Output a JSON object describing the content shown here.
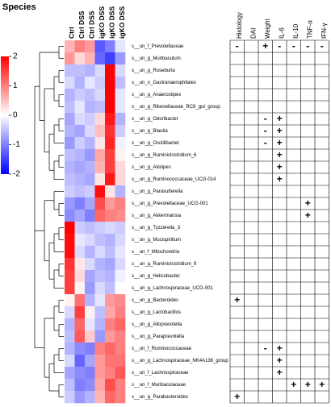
{
  "chart_data": {
    "type": "heatmap",
    "title": "Species",
    "columns": [
      "Ctrl",
      "Ctrl DSS",
      "Ctrl DSS",
      "igKO DSS",
      "igKO DSS",
      "igKO DSS"
    ],
    "rows": [
      "s__un_f_Prevotellaceae",
      "s__un_g_Muribaculum",
      "s__un_g_Roseburia",
      "s__un_o_Gastranaerophilales",
      "s__un_g_Anaerostipes",
      "s__un_g_Rikenellaceae_RC9_gut_group",
      "s__un_g_Odoribacter",
      "s__un_g_Blautia",
      "s__un_g_Oscillibacter",
      "s__un_g_Ruminiclostridium_6",
      "s__un_g_Alistipes",
      "s__un_g_Ruminococcaceae_UCG-014",
      "s__un_g_Parasutterella",
      "s__un_g_Prevotellaceae_UCG-001",
      "s__un_g_Akkermansia",
      "s__un_g_Tyzzerella_3",
      "s__un_g_Mucispirillum",
      "s__un_f_Mitochondria",
      "s__un_g_Ruminiclostridium_9",
      "s__un_g_Helicobacter",
      "s__un_g_Lachnospiraceae_UCG-001",
      "s__un_g_Bacteroides",
      "s__un_g_Lactobacillus",
      "s__un_g_Alloprevotella",
      "s__un_g_Paraprevotella",
      "s__un_f_Ruminococcaceae",
      "s__un_g_Lachnospiraceae_NK4A136_group",
      "s__un_f_Lachnospiraceae",
      "s__un_f_Muribaculaceae",
      "s__un_g_Parabacteroides"
    ],
    "values": [
      [
        0.6,
        1.0,
        0.8,
        -1.3,
        -1.0,
        -0.2
      ],
      [
        0.8,
        0.3,
        0.6,
        -1.2,
        -1.5,
        -0.8
      ],
      [
        -0.5,
        -0.5,
        -0.6,
        -0.3,
        2.0,
        -0.3
      ],
      [
        -0.3,
        -0.6,
        -0.2,
        -0.4,
        2.0,
        -0.5
      ],
      [
        -0.6,
        -0.4,
        -0.5,
        -0.3,
        2.0,
        -0.2
      ],
      [
        -0.5,
        -0.2,
        -0.6,
        -0.5,
        2.0,
        -0.2
      ],
      [
        -0.7,
        -0.3,
        -0.4,
        0.3,
        1.8,
        -0.6
      ],
      [
        -0.6,
        -0.7,
        -0.3,
        0.5,
        1.6,
        -0.4
      ],
      [
        -0.8,
        -0.4,
        -0.6,
        0.2,
        1.7,
        -0.1
      ],
      [
        -0.5,
        -0.6,
        -0.8,
        0.7,
        1.5,
        0.1
      ],
      [
        -0.6,
        -0.7,
        -0.6,
        0.6,
        1.5,
        0.3
      ],
      [
        -0.5,
        -0.6,
        -0.7,
        0.2,
        1.8,
        0.3
      ],
      [
        -0.4,
        -0.5,
        -0.4,
        1.9,
        0.2,
        -0.6
      ],
      [
        -0.8,
        -1.0,
        -0.7,
        1.4,
        0.8,
        1.0
      ],
      [
        -0.9,
        -0.7,
        -1.0,
        1.2,
        1.0,
        0.9
      ],
      [
        2.0,
        -0.4,
        -0.5,
        -0.4,
        -0.3,
        -0.4
      ],
      [
        1.9,
        -0.2,
        -0.3,
        -0.5,
        -0.6,
        -0.3
      ],
      [
        1.9,
        -0.3,
        -0.6,
        -0.3,
        -0.5,
        -0.2
      ],
      [
        1.6,
        0.2,
        -0.3,
        -0.6,
        -0.7,
        -0.3
      ],
      [
        1.5,
        0.3,
        -0.7,
        -0.5,
        -0.6,
        -0.1
      ],
      [
        1.5,
        0.1,
        -0.8,
        -0.3,
        -0.5,
        0.0
      ],
      [
        0.1,
        1.1,
        -0.6,
        -0.2,
        0.8,
        0.9
      ],
      [
        -0.3,
        1.5,
        0.1,
        -0.5,
        0.7,
        1.0
      ],
      [
        -0.6,
        1.2,
        -0.2,
        -0.6,
        1.0,
        1.2
      ],
      [
        -0.5,
        1.3,
        0.4,
        -0.8,
        0.8,
        1.0
      ],
      [
        -0.6,
        -0.9,
        -1.0,
        1.0,
        1.2,
        1.0
      ],
      [
        -0.3,
        -1.2,
        -0.7,
        0.8,
        1.1,
        1.1
      ],
      [
        -0.7,
        -0.9,
        -1.0,
        0.8,
        1.0,
        1.3
      ],
      [
        -0.5,
        -1.0,
        -0.9,
        0.7,
        1.4,
        1.0
      ],
      [
        -0.4,
        -0.8,
        -0.6,
        0.6,
        1.2,
        1.0
      ]
    ],
    "zlim": [
      -2,
      2
    ],
    "zticks": [
      2,
      1,
      0,
      -1,
      -2
    ],
    "colors": {
      "low": "#0000ff",
      "mid": "#ffffff",
      "high": "#ff0000"
    }
  },
  "table": {
    "columns": [
      "Histology",
      "DAI",
      "Weight",
      "IL-6",
      "IL-10",
      "TNF-α",
      "IFN-γ"
    ],
    "cells": [
      [
        "-",
        null,
        "+",
        "-",
        "-",
        "-",
        "-"
      ],
      [
        null,
        null,
        null,
        null,
        null,
        null,
        null
      ],
      [
        null,
        null,
        null,
        null,
        null,
        null,
        null
      ],
      [
        null,
        null,
        null,
        null,
        null,
        null,
        null
      ],
      [
        null,
        null,
        null,
        null,
        null,
        null,
        null
      ],
      [
        null,
        null,
        null,
        null,
        null,
        null,
        null
      ],
      [
        null,
        null,
        "-",
        "+",
        null,
        null,
        null
      ],
      [
        null,
        null,
        "-",
        "+",
        null,
        null,
        null
      ],
      [
        null,
        null,
        "-",
        "+",
        null,
        null,
        null
      ],
      [
        null,
        null,
        null,
        "+",
        null,
        null,
        null
      ],
      [
        null,
        null,
        null,
        "+",
        null,
        null,
        null
      ],
      [
        null,
        null,
        null,
        "+",
        null,
        null,
        null
      ],
      [
        null,
        null,
        null,
        null,
        null,
        null,
        null
      ],
      [
        null,
        null,
        null,
        null,
        null,
        "+",
        null
      ],
      [
        null,
        null,
        null,
        null,
        null,
        "+",
        null
      ],
      [
        null,
        null,
        null,
        null,
        null,
        null,
        null
      ],
      [
        null,
        null,
        null,
        null,
        null,
        null,
        null
      ],
      [
        null,
        null,
        null,
        null,
        null,
        null,
        null
      ],
      [
        null,
        null,
        null,
        null,
        null,
        null,
        null
      ],
      [
        null,
        null,
        null,
        null,
        null,
        null,
        null
      ],
      [
        null,
        null,
        null,
        null,
        null,
        null,
        null
      ],
      [
        "+",
        null,
        null,
        null,
        null,
        null,
        null
      ],
      [
        null,
        null,
        null,
        null,
        null,
        null,
        null
      ],
      [
        null,
        null,
        null,
        null,
        null,
        null,
        null
      ],
      [
        null,
        null,
        null,
        null,
        null,
        null,
        null
      ],
      [
        null,
        null,
        "-",
        "+",
        null,
        null,
        null
      ],
      [
        null,
        null,
        null,
        "+",
        null,
        null,
        null
      ],
      [
        null,
        null,
        null,
        "+",
        null,
        null,
        null
      ],
      [
        null,
        null,
        null,
        null,
        "+",
        "+",
        "+"
      ],
      [
        "+",
        null,
        null,
        null,
        null,
        null,
        null
      ]
    ]
  }
}
